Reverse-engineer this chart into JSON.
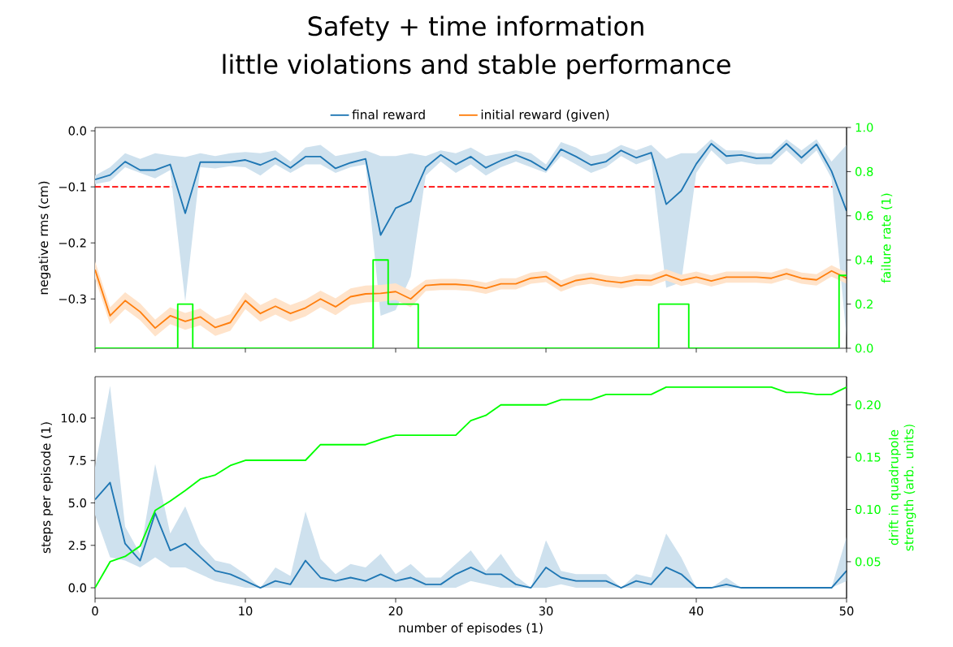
{
  "chart_data": [
    {
      "type": "line",
      "title": "Safety + time information",
      "subtitle": "little violations and stable performance",
      "legend": "top",
      "tick_labels": "y",
      "ylabel": "negative rms (cm)",
      "y2label": "failure rate (1)",
      "x": [
        0,
        1,
        2,
        3,
        4,
        5,
        6,
        7,
        8,
        9,
        10,
        11,
        12,
        13,
        14,
        15,
        16,
        17,
        18,
        19,
        20,
        21,
        22,
        23,
        24,
        25,
        26,
        27,
        28,
        29,
        30,
        31,
        32,
        33,
        34,
        35,
        36,
        37,
        38,
        39,
        40,
        41,
        42,
        43,
        44,
        45,
        46,
        47,
        48,
        49,
        50
      ],
      "xlim": [
        0,
        50
      ],
      "ylim": [
        -0.388,
        0.006
      ],
      "y2lim": [
        0,
        1
      ],
      "xticks": [
        {
          "value": 0,
          "label": null
        },
        {
          "value": 10,
          "label": null
        },
        {
          "value": 20,
          "label": null
        },
        {
          "value": 30,
          "label": null
        },
        {
          "value": 40,
          "label": null
        },
        {
          "value": 50,
          "label": null
        }
      ],
      "yticks": [
        {
          "value": 0,
          "label": "0.0"
        },
        {
          "value": -0.1,
          "label": "−0.1"
        },
        {
          "value": -0.2,
          "label": "−0.2"
        },
        {
          "value": -0.3,
          "label": "−0.3"
        }
      ],
      "y2ticks": [
        {
          "value": 0,
          "label": "0.0"
        },
        {
          "value": 0.2,
          "label": "0.2"
        },
        {
          "value": 0.4,
          "label": "0.4"
        },
        {
          "value": 0.6,
          "label": "0.6"
        },
        {
          "value": 0.8,
          "label": "0.8"
        },
        {
          "value": 1,
          "label": "1.0"
        }
      ],
      "ref_lines": [
        {
          "axis": "y",
          "value": -0.1,
          "color": "#ff0000",
          "line_style": "dashed"
        }
      ],
      "series": [
        {
          "name": "final reward",
          "color": "#1f77b4",
          "values": [
            -0.087,
            -0.079,
            -0.055,
            -0.07,
            -0.07,
            -0.06,
            -0.147,
            -0.056,
            -0.056,
            -0.056,
            -0.052,
            -0.061,
            -0.049,
            -0.066,
            -0.046,
            -0.046,
            -0.067,
            -0.057,
            -0.05,
            -0.186,
            -0.138,
            -0.126,
            -0.065,
            -0.043,
            -0.06,
            -0.046,
            -0.066,
            -0.053,
            -0.043,
            -0.054,
            -0.07,
            -0.033,
            -0.046,
            -0.061,
            -0.055,
            -0.035,
            -0.048,
            -0.039,
            -0.131,
            -0.107,
            -0.059,
            -0.023,
            -0.045,
            -0.043,
            -0.049,
            -0.048,
            -0.023,
            -0.048,
            -0.024,
            -0.072,
            -0.143
          ],
          "upper": [
            -0.08,
            -0.065,
            -0.04,
            -0.05,
            -0.04,
            -0.044,
            -0.047,
            -0.04,
            -0.045,
            -0.04,
            -0.038,
            -0.04,
            -0.035,
            -0.055,
            -0.03,
            -0.025,
            -0.045,
            -0.04,
            -0.035,
            -0.045,
            -0.045,
            -0.04,
            -0.045,
            -0.035,
            -0.04,
            -0.03,
            -0.045,
            -0.04,
            -0.035,
            -0.04,
            -0.06,
            -0.02,
            -0.03,
            -0.045,
            -0.04,
            -0.025,
            -0.035,
            -0.025,
            -0.05,
            -0.04,
            -0.04,
            -0.015,
            -0.035,
            -0.035,
            -0.04,
            -0.04,
            -0.015,
            -0.035,
            -0.015,
            -0.055,
            -0.025
          ],
          "lower": [
            -0.095,
            -0.09,
            -0.065,
            -0.075,
            -0.085,
            -0.07,
            -0.305,
            -0.065,
            -0.067,
            -0.063,
            -0.065,
            -0.08,
            -0.06,
            -0.075,
            -0.06,
            -0.06,
            -0.075,
            -0.065,
            -0.06,
            -0.33,
            -0.32,
            -0.26,
            -0.08,
            -0.055,
            -0.075,
            -0.06,
            -0.08,
            -0.065,
            -0.055,
            -0.065,
            -0.075,
            -0.045,
            -0.06,
            -0.075,
            -0.065,
            -0.045,
            -0.06,
            -0.05,
            -0.28,
            -0.27,
            -0.075,
            -0.035,
            -0.06,
            -0.055,
            -0.06,
            -0.06,
            -0.035,
            -0.06,
            -0.035,
            -0.085,
            -0.37
          ]
        },
        {
          "name": "initial reward (given)",
          "color": "#ff7f0e",
          "values": [
            -0.248,
            -0.33,
            -0.303,
            -0.323,
            -0.352,
            -0.33,
            -0.34,
            -0.332,
            -0.351,
            -0.342,
            -0.303,
            -0.326,
            -0.313,
            -0.326,
            -0.316,
            -0.3,
            -0.314,
            -0.296,
            -0.291,
            -0.29,
            -0.287,
            -0.3,
            -0.276,
            -0.274,
            -0.274,
            -0.276,
            -0.281,
            -0.273,
            -0.273,
            -0.263,
            -0.26,
            -0.277,
            -0.267,
            -0.263,
            -0.268,
            -0.271,
            -0.266,
            -0.267,
            -0.257,
            -0.267,
            -0.261,
            -0.268,
            -0.261,
            -0.261,
            -0.261,
            -0.263,
            -0.255,
            -0.263,
            -0.266,
            -0.25,
            -0.263
          ],
          "upper": [
            -0.233,
            -0.315,
            -0.288,
            -0.308,
            -0.337,
            -0.315,
            -0.325,
            -0.317,
            -0.336,
            -0.327,
            -0.288,
            -0.311,
            -0.298,
            -0.311,
            -0.301,
            -0.285,
            -0.299,
            -0.281,
            -0.276,
            -0.275,
            -0.272,
            -0.285,
            -0.266,
            -0.264,
            -0.264,
            -0.266,
            -0.271,
            -0.263,
            -0.263,
            -0.253,
            -0.25,
            -0.267,
            -0.257,
            -0.253,
            -0.258,
            -0.261,
            -0.256,
            -0.257,
            -0.247,
            -0.257,
            -0.251,
            -0.258,
            -0.251,
            -0.251,
            -0.251,
            -0.253,
            -0.245,
            -0.253,
            -0.256,
            -0.24,
            -0.253
          ],
          "lower": [
            -0.263,
            -0.345,
            -0.318,
            -0.338,
            -0.367,
            -0.345,
            -0.355,
            -0.347,
            -0.366,
            -0.357,
            -0.318,
            -0.341,
            -0.328,
            -0.341,
            -0.331,
            -0.315,
            -0.329,
            -0.311,
            -0.306,
            -0.305,
            -0.302,
            -0.315,
            -0.286,
            -0.284,
            -0.284,
            -0.286,
            -0.291,
            -0.283,
            -0.283,
            -0.273,
            -0.27,
            -0.287,
            -0.277,
            -0.273,
            -0.278,
            -0.281,
            -0.276,
            -0.277,
            -0.267,
            -0.277,
            -0.271,
            -0.278,
            -0.271,
            -0.271,
            -0.271,
            -0.273,
            -0.265,
            -0.273,
            -0.276,
            -0.26,
            -0.273
          ]
        },
        {
          "type": "step",
          "axis": "y2",
          "color": "#00ff00",
          "values": [
            0,
            0,
            0,
            0,
            0,
            0,
            0.2,
            0,
            0,
            0,
            0,
            0,
            0,
            0,
            0,
            0,
            0,
            0,
            0,
            0.4,
            0.2,
            0.2,
            0,
            0,
            0,
            0,
            0,
            0,
            0,
            0,
            0,
            0,
            0,
            0,
            0,
            0,
            0,
            0,
            0.2,
            0.2,
            0,
            0,
            0,
            0,
            0,
            0,
            0,
            0,
            0,
            0,
            0.33
          ]
        }
      ]
    },
    {
      "type": "line",
      "xlabel": "number of episodes (1)",
      "ylabel": "steps per episode (1)",
      "y2label": "drift in quadrupole strength (arb. units)",
      "x": [
        0,
        1,
        2,
        3,
        4,
        5,
        6,
        7,
        8,
        9,
        10,
        11,
        12,
        13,
        14,
        15,
        16,
        17,
        18,
        19,
        20,
        21,
        22,
        23,
        24,
        25,
        26,
        27,
        28,
        29,
        30,
        31,
        32,
        33,
        34,
        35,
        36,
        37,
        38,
        39,
        40,
        41,
        42,
        43,
        44,
        45,
        46,
        47,
        48,
        49,
        50
      ],
      "xlim": [
        0,
        50
      ],
      "ylim": [
        -0.62,
        12.44
      ],
      "y2lim": [
        0.015,
        0.227
      ],
      "xticks": [
        0,
        10,
        20,
        30,
        40,
        50
      ],
      "yticks": [
        {
          "value": 0,
          "label": "0.0"
        },
        2.5,
        {
          "value": 5,
          "label": "5.0"
        },
        7.5,
        {
          "value": 10,
          "label": "10.0"
        }
      ],
      "y2ticks": [
        0.05,
        {
          "value": 0.1,
          "label": "0.10"
        },
        0.15,
        {
          "value": 0.2,
          "label": "0.20"
        }
      ],
      "series": [
        {
          "color": "#1f77b4",
          "values": [
            5.2,
            6.2,
            2.6,
            1.6,
            4.4,
            2.2,
            2.6,
            1.8,
            1.0,
            0.8,
            0.4,
            0,
            0.4,
            0.2,
            1.6,
            0.6,
            0.4,
            0.6,
            0.4,
            0.8,
            0.4,
            0.6,
            0.2,
            0.2,
            0.8,
            1.2,
            0.8,
            0.8,
            0.2,
            0,
            1.2,
            0.6,
            0.4,
            0.4,
            0.4,
            0,
            0.4,
            0.2,
            1.2,
            0.8,
            0,
            0,
            0.2,
            0,
            0,
            0,
            0,
            0,
            0,
            0,
            1.0
          ],
          "upper": [
            7.1,
            11.9,
            3.6,
            2.0,
            7.3,
            3.2,
            4.8,
            2.6,
            1.6,
            1.4,
            0.8,
            0,
            1.2,
            0.7,
            4.5,
            1.7,
            0.8,
            1.4,
            1.2,
            2.0,
            0.8,
            1.4,
            0.6,
            0.6,
            1.4,
            2.2,
            1.0,
            2.0,
            0.7,
            0,
            2.8,
            1.0,
            0.8,
            0.8,
            0.8,
            0,
            0.8,
            0.6,
            3.2,
            1.8,
            0,
            0,
            0.6,
            0,
            0,
            0,
            0,
            0,
            0,
            0,
            3.0
          ],
          "lower": [
            4.3,
            1.8,
            1.6,
            1.2,
            1.8,
            1.2,
            1.2,
            0.8,
            0.4,
            0.2,
            0,
            0,
            0,
            0,
            0,
            0,
            0,
            0,
            0,
            0,
            0,
            0,
            0,
            0,
            0,
            0.4,
            0.2,
            0,
            0,
            0,
            0,
            0.2,
            0,
            0,
            0,
            0,
            0,
            0,
            0,
            0,
            0,
            0,
            0,
            0,
            0,
            0,
            0,
            0,
            0,
            0,
            0.4
          ]
        },
        {
          "axis": "y2",
          "color": "#00ff00",
          "values": [
            0.025,
            0.05,
            0.055,
            0.065,
            0.099,
            0.108,
            0.118,
            0.129,
            0.133,
            0.142,
            0.147,
            0.147,
            0.147,
            0.147,
            0.147,
            0.162,
            0.162,
            0.162,
            0.162,
            0.167,
            0.171,
            0.171,
            0.171,
            0.171,
            0.171,
            0.185,
            0.19,
            0.2,
            0.2,
            0.2,
            0.2,
            0.205,
            0.205,
            0.205,
            0.21,
            0.21,
            0.21,
            0.21,
            0.217,
            0.217,
            0.217,
            0.217,
            0.217,
            0.217,
            0.217,
            0.217,
            0.212,
            0.212,
            0.21,
            0.21,
            0.217
          ]
        }
      ]
    }
  ]
}
